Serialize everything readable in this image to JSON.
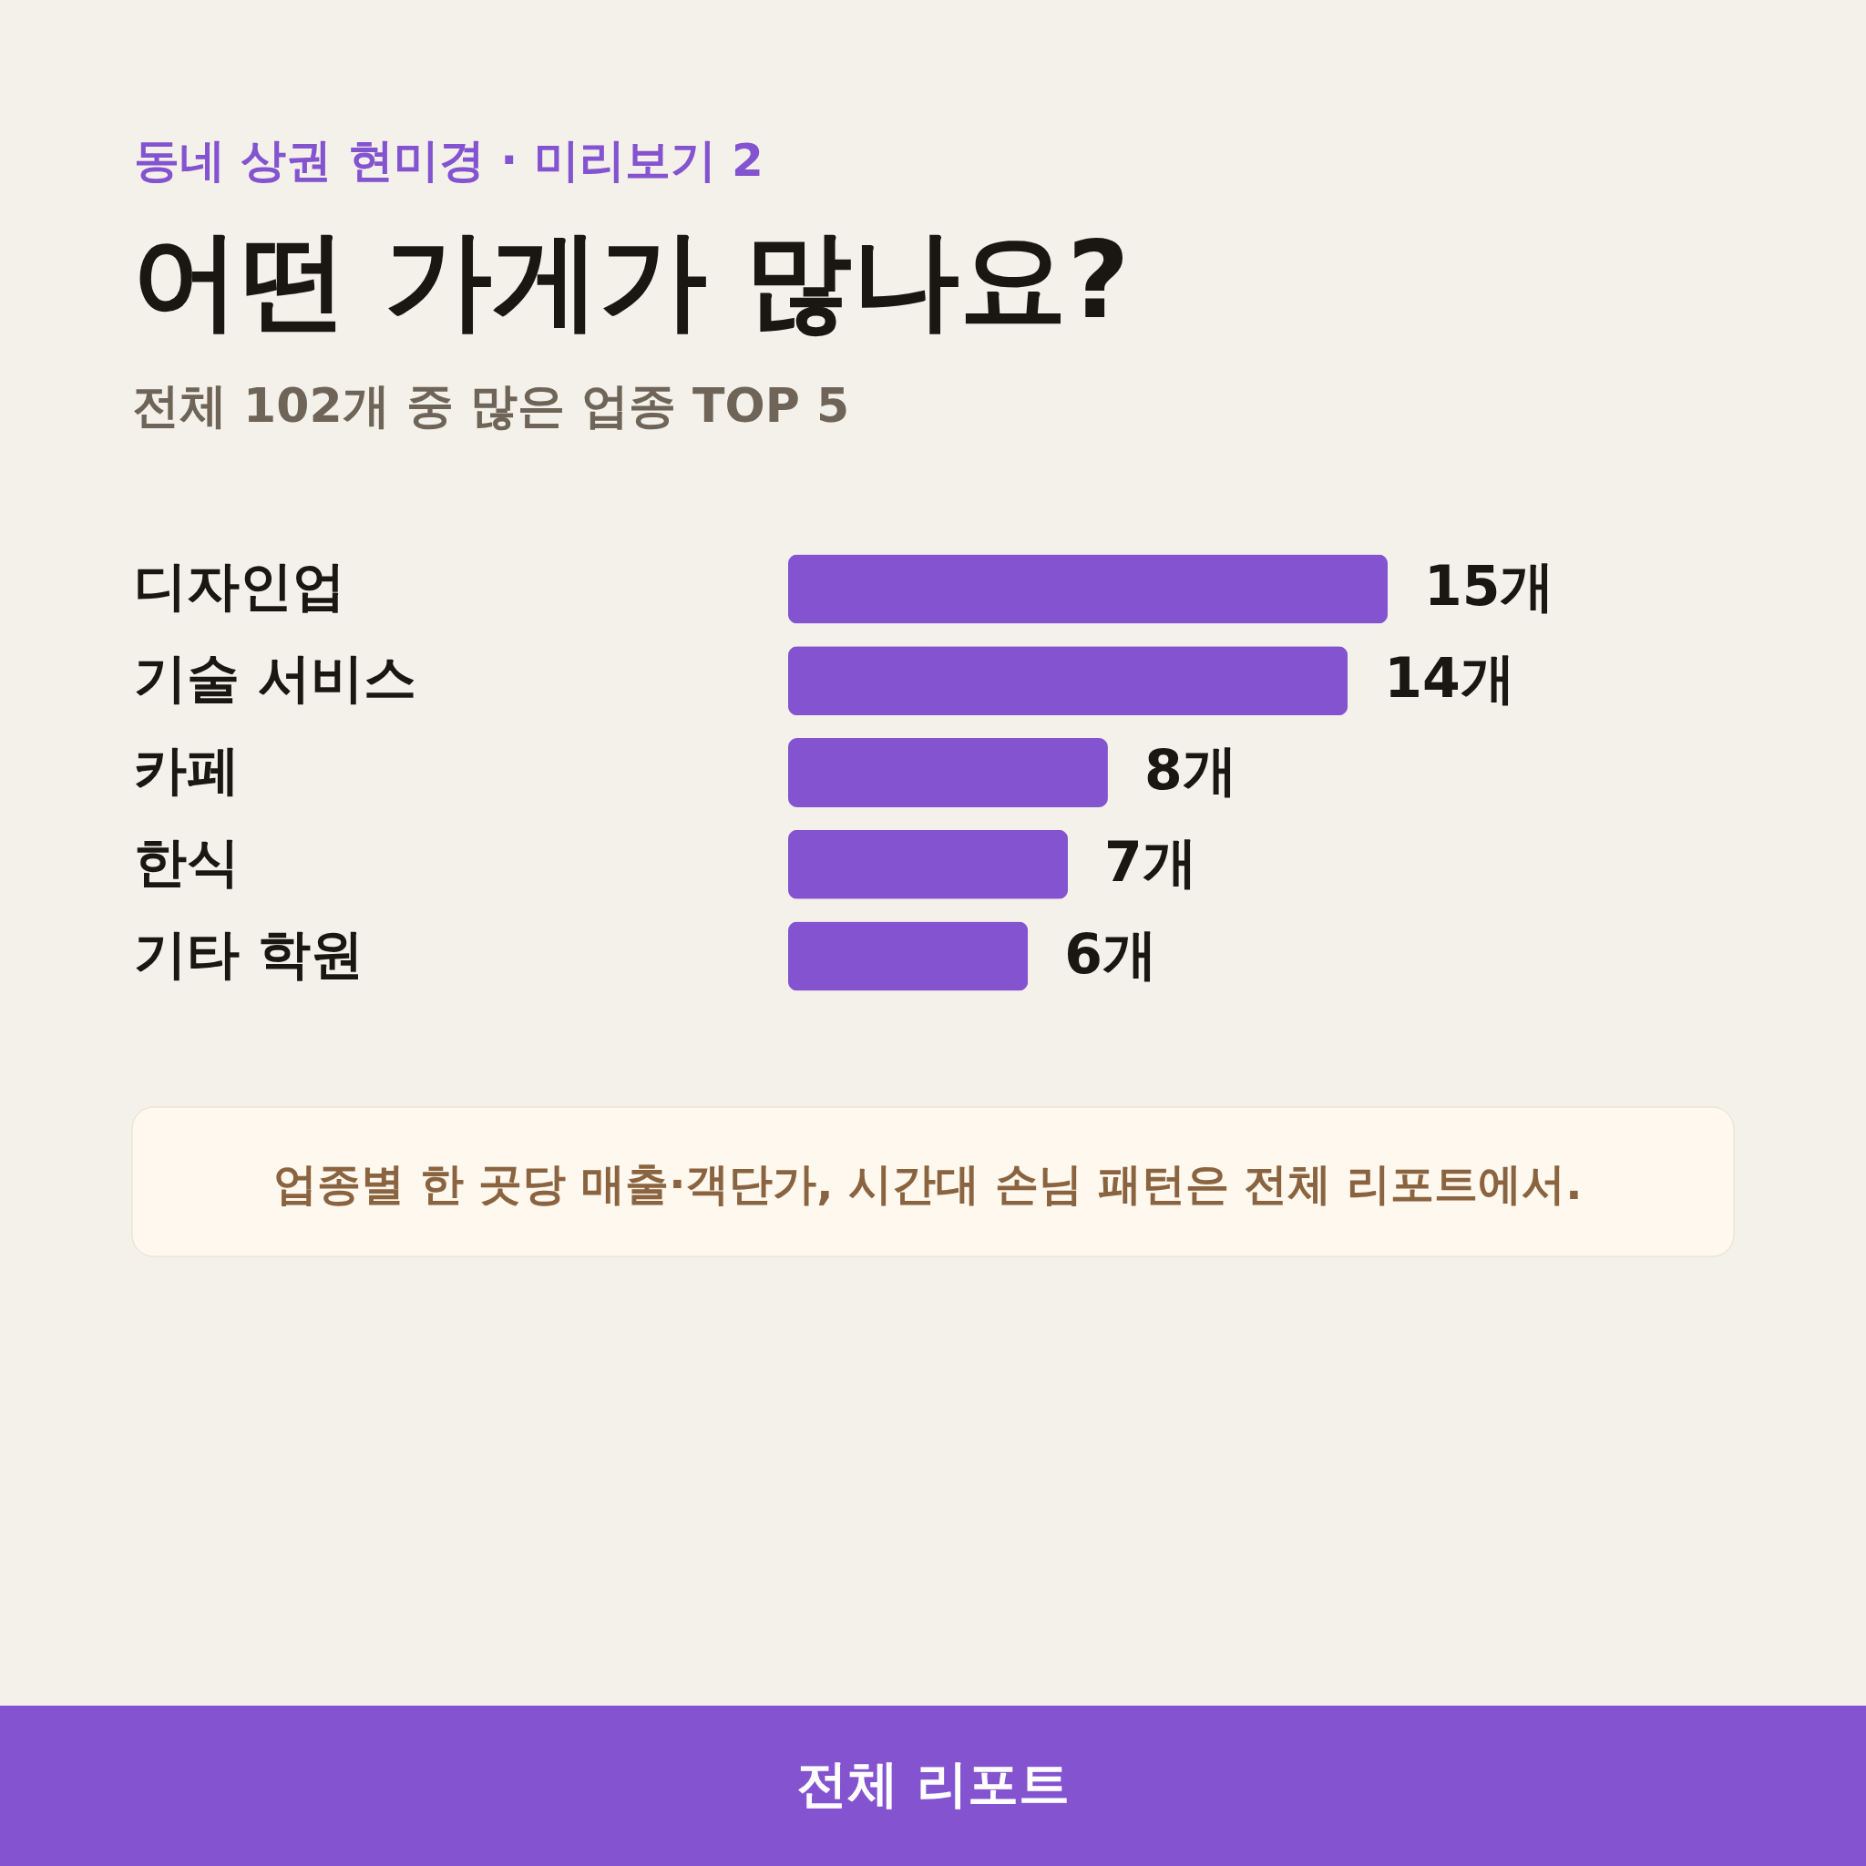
{
  "chart_data": {
    "type": "bar",
    "orientation": "horizontal",
    "title": "어떤 가게가 많나요?",
    "subtitle": "전체 102개 중 많은 업종 TOP 5",
    "categories": [
      "디자인업",
      "기술 서비스",
      "카페",
      "한식",
      "기타 학원"
    ],
    "values": [
      15,
      14,
      8,
      7,
      6
    ],
    "value_labels": [
      "15개",
      "14개",
      "8개",
      "7개",
      "6개"
    ],
    "color": "#8454d0",
    "annotations": [
      "동네 상권 현미경 · 미리보기 2",
      "업종별 한 곳당 매출·객단가, 시간대 손님 패턴은 전체 리포트에서.",
      "전체 리포트"
    ]
  }
}
